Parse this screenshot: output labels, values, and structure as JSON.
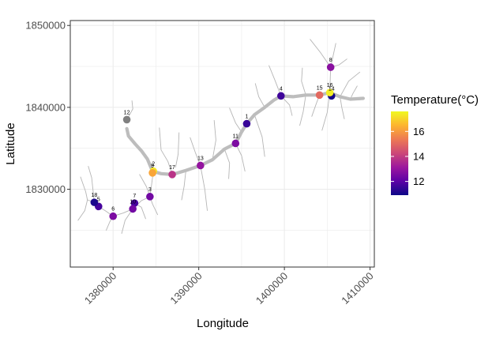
{
  "chart_data": {
    "type": "scatter",
    "xlabel": "Longitude",
    "ylabel": "Latitude",
    "xlim": [
      1375000,
      1410500
    ],
    "ylim": [
      1820500,
      1850600
    ],
    "x_ticks": [
      1380000,
      1390000,
      1400000,
      1410000
    ],
    "x_tick_labels": [
      "1380000",
      "1390000",
      "1400000",
      "1410000"
    ],
    "y_ticks": [
      1830000,
      1840000,
      1850000
    ],
    "y_tick_labels": [
      "1830000",
      "1840000",
      "1850000"
    ],
    "grid": true,
    "legend": {
      "title": "Temperature(°C)",
      "position": "right",
      "min": 10.9,
      "max": 17.6,
      "ticks": [
        12,
        14,
        16
      ],
      "tick_labels": [
        "12",
        "14",
        "16"
      ],
      "colors": [
        "#0d0887",
        "#5c01a6",
        "#9c179e",
        "#cc4778",
        "#ed7953",
        "#fdb42f",
        "#f0f921"
      ]
    },
    "na_color": "#808080",
    "points": [
      {
        "label": "1",
        "x": 1395600,
        "y": 1838000,
        "temp": 11.5
      },
      {
        "label": "2",
        "x": 1384700,
        "y": 1832200,
        "temp": 17.3
      },
      {
        "label": "3",
        "x": 1384300,
        "y": 1829100,
        "temp": 12.4
      },
      {
        "label": "4",
        "x": 1399600,
        "y": 1841400,
        "temp": 11.6
      },
      {
        "label": "5",
        "x": 1378300,
        "y": 1827900,
        "temp": 11.7
      },
      {
        "label": "6",
        "x": 1380000,
        "y": 1826700,
        "temp": 12.6
      },
      {
        "label": "7",
        "x": 1382500,
        "y": 1828300,
        "temp": 11.7
      },
      {
        "label": "8",
        "x": 1405400,
        "y": 1844900,
        "temp": 12.8
      },
      {
        "label": "9",
        "x": 1384600,
        "y": 1832000,
        "temp": 16.2
      },
      {
        "label": "10",
        "x": 1382300,
        "y": 1827600,
        "temp": 12.4
      },
      {
        "label": "11",
        "x": 1394300,
        "y": 1835600,
        "temp": 12.6
      },
      {
        "label": "12",
        "x": 1381600,
        "y": 1838500,
        "temp": null
      },
      {
        "label": "13",
        "x": 1390200,
        "y": 1832900,
        "temp": 13.0
      },
      {
        "label": "14",
        "x": 1405500,
        "y": 1841400,
        "temp": 11.0
      },
      {
        "label": "15",
        "x": 1404100,
        "y": 1841500,
        "temp": 15.0
      },
      {
        "label": "16",
        "x": 1405300,
        "y": 1841800,
        "temp": 17.4
      },
      {
        "label": "17",
        "x": 1386900,
        "y": 1831800,
        "temp": 13.8
      },
      {
        "label": "18",
        "x": 1377800,
        "y": 1828400,
        "temp": 11.1
      }
    ],
    "main_river": [
      [
        1381600,
        1837400
      ],
      [
        1381800,
        1836500
      ],
      [
        1382600,
        1835500
      ],
      [
        1383300,
        1834700
      ],
      [
        1384000,
        1833700
      ],
      [
        1384600,
        1832200
      ],
      [
        1385600,
        1831900
      ],
      [
        1386900,
        1831800
      ],
      [
        1388500,
        1832300
      ],
      [
        1390200,
        1832900
      ],
      [
        1391600,
        1833600
      ],
      [
        1393000,
        1834900
      ],
      [
        1394300,
        1835600
      ],
      [
        1395000,
        1837000
      ],
      [
        1395600,
        1838000
      ],
      [
        1396500,
        1839100
      ],
      [
        1397700,
        1840000
      ],
      [
        1398800,
        1840900
      ],
      [
        1399600,
        1841400
      ],
      [
        1401000,
        1841300
      ],
      [
        1402500,
        1841500
      ],
      [
        1404100,
        1841500
      ],
      [
        1405300,
        1841800
      ],
      [
        1406500,
        1841300
      ],
      [
        1407700,
        1841000
      ],
      [
        1409200,
        1841100
      ]
    ],
    "tributaries": [
      [
        [
          1382200,
          1840800
        ],
        [
          1382300,
          1839800
        ],
        [
          1381600,
          1838500
        ]
      ],
      [
        [
          1377000,
          1828700
        ],
        [
          1377800,
          1828400
        ],
        [
          1378300,
          1827900
        ],
        [
          1379200,
          1827300
        ],
        [
          1380000,
          1826700
        ],
        [
          1381200,
          1827100
        ],
        [
          1382300,
          1827600
        ],
        [
          1383300,
          1828600
        ],
        [
          1384300,
          1829100
        ],
        [
          1384500,
          1830600
        ],
        [
          1384700,
          1832200
        ]
      ],
      [
        [
          1376200,
          1831500
        ],
        [
          1376800,
          1829700
        ],
        [
          1377000,
          1828700
        ]
      ],
      [
        [
          1375900,
          1826200
        ],
        [
          1376700,
          1827400
        ],
        [
          1377000,
          1828700
        ]
      ],
      [
        [
          1377100,
          1832800
        ],
        [
          1377500,
          1831400
        ],
        [
          1377800,
          1828400
        ]
      ],
      [
        [
          1379200,
          1825000
        ],
        [
          1379600,
          1826000
        ],
        [
          1380000,
          1826700
        ]
      ],
      [
        [
          1381000,
          1824600
        ],
        [
          1381400,
          1826200
        ],
        [
          1382300,
          1827600
        ]
      ],
      [
        [
          1383800,
          1826400
        ],
        [
          1383300,
          1827800
        ],
        [
          1382500,
          1828300
        ]
      ],
      [
        [
          1385200,
          1826900
        ],
        [
          1384600,
          1828200
        ],
        [
          1384300,
          1829100
        ]
      ],
      [
        [
          1383100,
          1831800
        ],
        [
          1383900,
          1830300
        ],
        [
          1384300,
          1829100
        ]
      ],
      [
        [
          1385400,
          1837500
        ],
        [
          1385600,
          1834800
        ],
        [
          1386400,
          1833400
        ],
        [
          1386900,
          1831800
        ]
      ],
      [
        [
          1387700,
          1836900
        ],
        [
          1387600,
          1834300
        ],
        [
          1387300,
          1832700
        ]
      ],
      [
        [
          1388000,
          1828700
        ],
        [
          1388300,
          1830400
        ],
        [
          1388500,
          1832300
        ]
      ],
      [
        [
          1389000,
          1836300
        ],
        [
          1389600,
          1834500
        ],
        [
          1390200,
          1832900
        ]
      ],
      [
        [
          1391000,
          1827400
        ],
        [
          1390700,
          1830000
        ],
        [
          1390200,
          1832900
        ]
      ],
      [
        [
          1391800,
          1838400
        ],
        [
          1392000,
          1836000
        ],
        [
          1391600,
          1833600
        ]
      ],
      [
        [
          1393500,
          1831300
        ],
        [
          1393600,
          1833200
        ],
        [
          1393000,
          1834900
        ]
      ],
      [
        [
          1395400,
          1832200
        ],
        [
          1395000,
          1834100
        ],
        [
          1394300,
          1835600
        ]
      ],
      [
        [
          1393600,
          1839900
        ],
        [
          1394300,
          1838100
        ],
        [
          1395000,
          1837000
        ]
      ],
      [
        [
          1397700,
          1834000
        ],
        [
          1397400,
          1836400
        ],
        [
          1396500,
          1839100
        ]
      ],
      [
        [
          1396600,
          1842900
        ],
        [
          1397000,
          1841300
        ],
        [
          1397700,
          1840000
        ]
      ],
      [
        [
          1398200,
          1845100
        ],
        [
          1398900,
          1843300
        ],
        [
          1399600,
          1841400
        ]
      ],
      [
        [
          1400900,
          1839000
        ],
        [
          1400600,
          1840300
        ],
        [
          1399600,
          1841400
        ]
      ],
      [
        [
          1402100,
          1844800
        ],
        [
          1402000,
          1843200
        ],
        [
          1402500,
          1841500
        ]
      ],
      [
        [
          1401800,
          1837800
        ],
        [
          1402200,
          1839500
        ],
        [
          1402500,
          1841500
        ]
      ],
      [
        [
          1403200,
          1838900
        ],
        [
          1403700,
          1840400
        ],
        [
          1404100,
          1841500
        ]
      ],
      [
        [
          1406000,
          1847800
        ],
        [
          1405400,
          1844900
        ],
        [
          1405300,
          1841800
        ]
      ],
      [
        [
          1403000,
          1848300
        ],
        [
          1404200,
          1846700
        ],
        [
          1405400,
          1844900
        ]
      ],
      [
        [
          1407300,
          1845900
        ],
        [
          1406400,
          1845200
        ],
        [
          1405400,
          1844900
        ]
      ],
      [
        [
          1407000,
          1838600
        ],
        [
          1406700,
          1840000
        ],
        [
          1406500,
          1841300
        ]
      ],
      [
        [
          1408500,
          1842600
        ],
        [
          1408000,
          1841700
        ],
        [
          1407700,
          1841000
        ]
      ],
      [
        [
          1404400,
          1837200
        ],
        [
          1405000,
          1839400
        ],
        [
          1405300,
          1841800
        ]
      ],
      [
        [
          1408800,
          1844300
        ],
        [
          1407500,
          1843200
        ],
        [
          1406500,
          1841300
        ]
      ]
    ]
  }
}
